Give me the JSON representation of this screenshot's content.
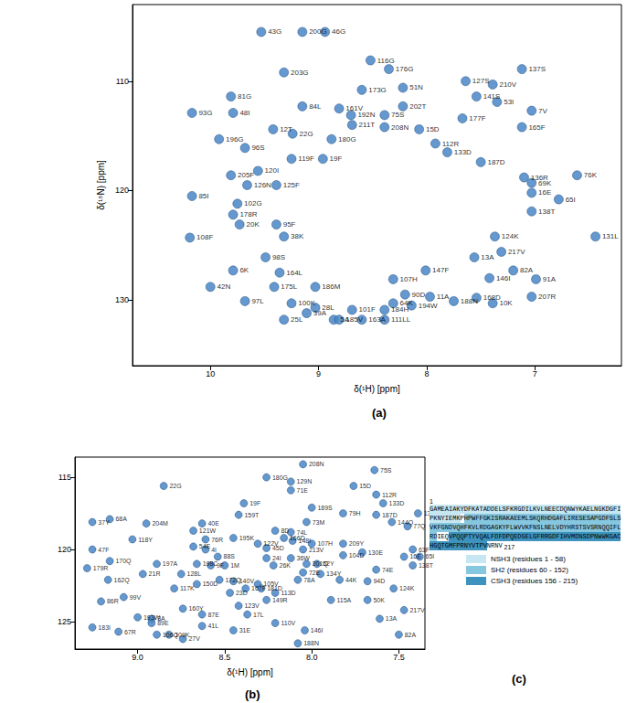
{
  "chart_data": [
    {
      "type": "scatter",
      "title": "(a)",
      "x_label": "δ(¹H) [ppm]",
      "y_label": "δ(¹⁵N) [ppm]",
      "xlim": [
        10.72,
        6.2
      ],
      "ylim": [
        136,
        103
      ],
      "xticks": [
        10,
        9,
        8,
        7
      ],
      "yticks": [
        110,
        120,
        130
      ],
      "grid": false,
      "color": "#4a86c5",
      "marker": "circle",
      "labels": [
        "43G",
        "200G",
        "46G",
        "203G",
        "116G",
        "176G",
        "127S",
        "137S",
        "81G",
        "173G",
        "51N",
        "210V",
        "141S",
        "53I",
        "84L",
        "161V",
        "202T",
        "7V",
        "48I",
        "93G",
        "192N",
        "75S",
        "177F",
        "165F",
        "12T",
        "211T",
        "208N",
        "15D",
        "22G",
        "180G",
        "196G",
        "96S",
        "112R",
        "133D",
        "187D",
        "119F",
        "19F",
        "120I",
        "205F",
        "126N",
        "125F",
        "136R",
        "69K",
        "76K",
        "16E",
        "85I",
        "102G",
        "65I",
        "178R",
        "20K",
        "95F",
        "138T",
        "38K",
        "108F",
        "124K",
        "131L",
        "217V",
        "13A",
        "98S",
        "82A",
        "6K",
        "164L",
        "147F",
        "146I",
        "91A",
        "175L",
        "186M",
        "107H",
        "42N",
        "97L",
        "100K",
        "28L",
        "39A",
        "64K",
        "90D",
        "188N",
        "11A",
        "168D",
        "10K",
        "207R",
        "194W",
        "184H",
        "5A",
        "101F",
        "185V",
        "25L",
        "163A",
        "111LL"
      ],
      "x": [
        9.53,
        9.15,
        8.94,
        9.32,
        8.52,
        8.35,
        7.64,
        7.12,
        9.81,
        8.6,
        8.22,
        7.39,
        7.54,
        7.35,
        9.15,
        8.81,
        8.22,
        7.03,
        9.79,
        10.17,
        8.7,
        8.39,
        7.67,
        7.12,
        9.42,
        8.69,
        8.39,
        8.07,
        9.24,
        8.88,
        9.92,
        9.68,
        7.92,
        7.81,
        7.5,
        9.25,
        8.96,
        9.56,
        9.81,
        9.66,
        9.39,
        7.1,
        7.03,
        6.61,
        7.03,
        10.17,
        9.75,
        6.78,
        9.79,
        9.73,
        9.39,
        7.03,
        9.32,
        10.19,
        7.37,
        6.44,
        7.31,
        7.56,
        9.49,
        7.2,
        9.79,
        9.36,
        8.01,
        7.42,
        6.99,
        9.41,
        9.03,
        8.31,
        10.0,
        9.68,
        9.25,
        9.03,
        9.11,
        8.31,
        8.2,
        7.75,
        7.97,
        7.54,
        7.39,
        7.03,
        8.14,
        8.39,
        8.86,
        8.69,
        8.81,
        9.32,
        8.6,
        8.39
      ],
      "values": [
        105.5,
        105.5,
        105.5,
        109.2,
        108.1,
        108.9,
        110.0,
        108.9,
        111.4,
        110.8,
        110.6,
        110.3,
        111.4,
        111.9,
        112.3,
        112.5,
        112.3,
        112.7,
        112.9,
        112.9,
        113.1,
        113.1,
        113.4,
        114.2,
        114.4,
        114.0,
        114.2,
        114.4,
        114.8,
        115.3,
        115.3,
        116.1,
        115.7,
        116.5,
        117.4,
        117.1,
        117.1,
        118.2,
        118.6,
        119.5,
        119.5,
        118.8,
        119.3,
        118.6,
        120.2,
        120.5,
        121.2,
        120.8,
        122.2,
        123.1,
        123.1,
        121.9,
        124.2,
        124.3,
        124.2,
        124.2,
        125.6,
        126.1,
        126.1,
        127.3,
        127.3,
        127.5,
        127.3,
        128.0,
        128.1,
        128.8,
        128.8,
        128.1,
        128.8,
        130.1,
        130.3,
        130.7,
        131.2,
        130.3,
        129.5,
        130.1,
        129.7,
        129.8,
        130.3,
        129.7,
        130.5,
        130.9,
        131.8,
        130.9,
        131.8,
        131.8,
        131.8,
        131.8
      ]
    },
    {
      "type": "scatter",
      "title": "(b)",
      "x_label": "δ(¹H) [ppm]",
      "xlim": [
        9.36,
        7.35
      ],
      "ylim": [
        126.9,
        113.6
      ],
      "xticks": [
        {
          "value": 9,
          "label": "9.0"
        },
        8.5,
        {
          "value": 8,
          "label": "8.0"
        },
        7.5
      ],
      "yticks": [
        115,
        120,
        125
      ],
      "grid": false,
      "color": "#4a86c5",
      "marker": "circle",
      "labels": [
        "208N",
        "75S",
        "180G",
        "129N",
        "15D",
        "22G",
        "71E",
        "112R",
        "19F",
        "133D",
        "189S",
        "159T",
        "136R",
        "187D",
        "79H",
        "144Q",
        "37Y",
        "68A",
        "204M",
        "40E",
        "73M",
        "77Q",
        "121W",
        "8D",
        "74L",
        "195K",
        "166D",
        "118Y",
        "76R",
        "148I",
        "122V",
        "107H",
        "54E",
        "4I",
        "45D",
        "213V",
        "209Y",
        "130E",
        "63F",
        "47F",
        "16E",
        "65I",
        "88S",
        "24I",
        "36W",
        "104D",
        "170Q",
        "197A",
        "198C",
        "9F",
        "1M",
        "26K",
        "52Y",
        "138T",
        "179R",
        "21R",
        "128L",
        "172Q",
        "140V",
        "72E",
        "134Y",
        "74E",
        "162Q",
        "150D",
        "105V",
        "181D",
        "167F",
        "78A",
        "44K",
        "94D",
        "201Q",
        "117K",
        "23D",
        "113D",
        "124K",
        "99V",
        "149R",
        "115A",
        "50K",
        "86R",
        "123V",
        "160Y",
        "3A",
        "87E",
        "193W",
        "17L",
        "13A",
        "217V",
        "89E",
        "41L",
        "31E",
        "110V",
        "146I",
        "183I",
        "67R",
        "106Q",
        "109K",
        "27V",
        "82A",
        "188N"
      ],
      "x": [
        8.05,
        7.64,
        8.26,
        8.12,
        7.76,
        8.85,
        8.12,
        7.63,
        8.39,
        7.59,
        8.0,
        8.42,
        7.39,
        7.63,
        7.82,
        7.54,
        9.26,
        9.16,
        8.95,
        8.63,
        8.03,
        7.45,
        8.68,
        8.21,
        8.12,
        8.45,
        8.16,
        9.03,
        8.61,
        8.11,
        8.31,
        8.0,
        8.68,
        8.61,
        8.26,
        8.05,
        7.82,
        7.71,
        7.42,
        9.26,
        7.47,
        7.38,
        8.54,
        8.26,
        8.12,
        7.82,
        9.16,
        8.89,
        8.66,
        8.58,
        8.5,
        8.22,
        7.97,
        7.42,
        9.29,
        8.97,
        8.75,
        8.53,
        8.45,
        8.05,
        7.95,
        7.63,
        9.17,
        8.66,
        8.31,
        8.29,
        8.38,
        8.08,
        7.84,
        7.68,
        8.03,
        8.79,
        8.47,
        8.21,
        7.53,
        9.08,
        8.26,
        7.89,
        7.68,
        9.21,
        8.42,
        8.74,
        8.92,
        8.63,
        9.0,
        8.37,
        7.61,
        7.47,
        8.92,
        8.63,
        8.45,
        8.21,
        8.04,
        9.26,
        9.11,
        8.89,
        8.82,
        8.74,
        7.5,
        8.08
      ],
      "values": [
        114.1,
        114.5,
        115.0,
        115.3,
        115.6,
        115.6,
        115.9,
        116.2,
        116.8,
        116.8,
        117.1,
        117.6,
        117.5,
        117.6,
        117.5,
        118.1,
        118.1,
        117.9,
        118.2,
        118.2,
        118.1,
        118.4,
        118.7,
        118.7,
        118.8,
        119.2,
        119.2,
        119.3,
        119.3,
        119.4,
        119.6,
        119.6,
        119.8,
        120.0,
        119.9,
        120.0,
        119.6,
        120.2,
        120.0,
        120.0,
        120.5,
        120.5,
        120.5,
        120.6,
        120.6,
        120.4,
        120.8,
        121.0,
        121.0,
        121.1,
        121.1,
        121.1,
        121.0,
        121.1,
        121.3,
        121.7,
        121.7,
        122.1,
        122.2,
        121.6,
        121.7,
        121.4,
        122.1,
        122.4,
        122.4,
        122.7,
        122.7,
        122.1,
        122.1,
        122.2,
        121.0,
        122.7,
        123.0,
        123.0,
        122.7,
        123.3,
        123.5,
        123.5,
        123.5,
        123.6,
        123.9,
        124.1,
        124.8,
        124.5,
        124.7,
        124.5,
        124.8,
        124.2,
        125.1,
        125.3,
        125.6,
        125.1,
        125.6,
        125.4,
        125.7,
        125.9,
        125.9,
        126.2,
        125.9,
        126.5
      ]
    }
  ],
  "sequence_panel": {
    "title": "(c)",
    "first_number": "1",
    "last_number": "217",
    "sequence": "GAMEAIAKYDFKATADDELSFKRGDILKVLNEECDQNWYKAELNGKDGFIPKNYIEMKPHPWFFGKISRAKAEEMLSKQRHDGAFLIRESESAPGDFSLSVKFGNDVQHFKVLRDGAGKYFLWVVKFNSLNELVDYHRSTSVSRNQQIFLRDIEQVPQQPTYVQALFDFDPQEDGELGFRRGDFIHVMDNSDPNWWKGACHGQTGMFPRNYVTPVNRNV",
    "domains": [
      {
        "label": "NSH3 (residues 1 - 58)",
        "start": 1,
        "end": 58,
        "color": "#c6e6f2"
      },
      {
        "label": "SH2 (residues 60 - 152)",
        "start": 60,
        "end": 152,
        "color": "#86c7e0"
      },
      {
        "label": "CSH3 (residues 156 - 215)",
        "start": 156,
        "end": 215,
        "color": "#3d93bd"
      }
    ]
  }
}
